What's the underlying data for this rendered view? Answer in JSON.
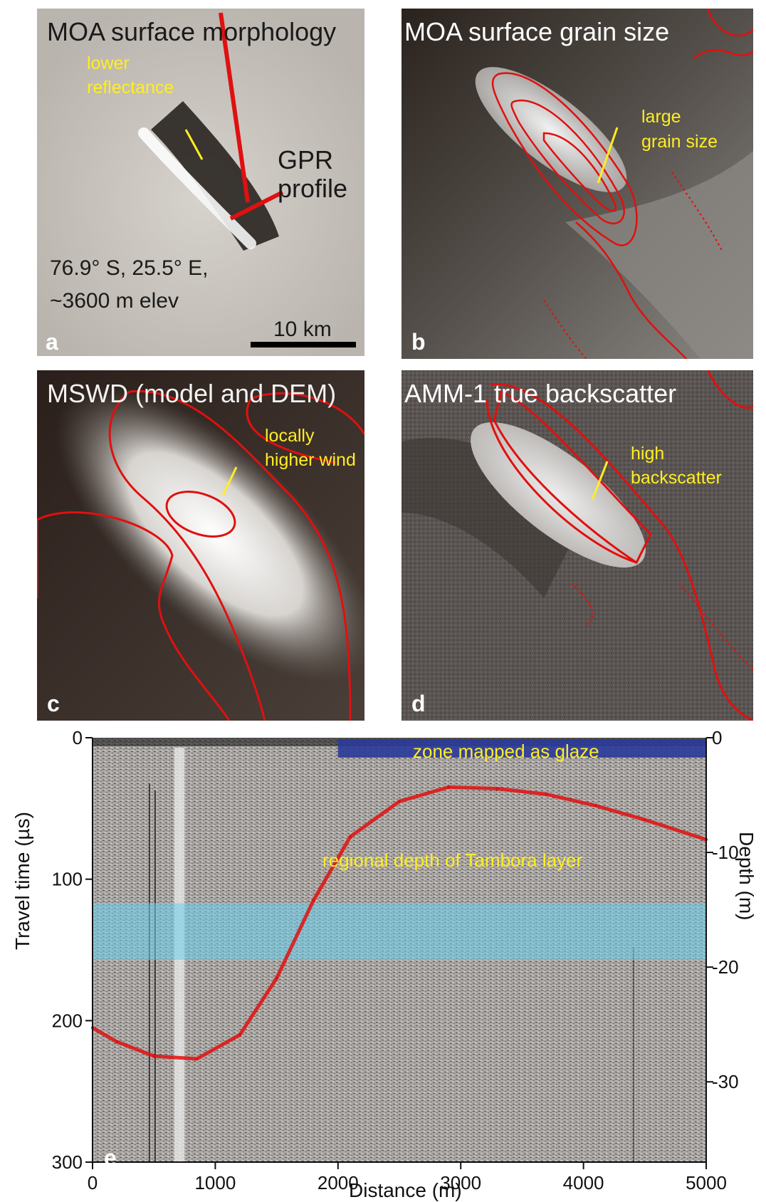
{
  "panels": {
    "a": {
      "letter": "a",
      "title": "MOA surface morphology",
      "annotation_lines": [
        "lower",
        "reflectance"
      ],
      "gpr_lines": [
        "GPR",
        "profile"
      ],
      "coord_lines": [
        "76.9° S, 25.5° E,",
        "~3600 m elev"
      ],
      "scale_label": "10 km"
    },
    "b": {
      "letter": "b",
      "title": "MOA surface grain size",
      "annotation_lines": [
        "large",
        "grain size"
      ]
    },
    "c": {
      "letter": "c",
      "title": "MSWD (model and DEM)",
      "annotation_lines": [
        "locally",
        "higher wind"
      ]
    },
    "d": {
      "letter": "d",
      "title": "AMM-1 true backscatter",
      "annotation_lines": [
        "high",
        "backscatter"
      ]
    },
    "e": {
      "letter": "e",
      "glaze_label": "zone mapped as glaze",
      "tambora_label": "regional depth of Tambora layer"
    }
  },
  "colors": {
    "contour": "#e01010",
    "annotation": "#ffee22",
    "glaze_band": "#2a3a9a",
    "tambora_band": "#6ad0ee"
  },
  "chart_data": {
    "type": "line",
    "xlabel": "Distance (m)",
    "ylabel": "Travel time (µs)",
    "y2label": "Depth (m)",
    "xlim": [
      0,
      5000
    ],
    "ylim": [
      0,
      300
    ],
    "y2lim": [
      0,
      37
    ],
    "x_ticks": [
      "0",
      "1000",
      "2000",
      "3000",
      "4000",
      "5000"
    ],
    "y_ticks": [
      "0",
      "100",
      "200",
      "300"
    ],
    "y2_ticks": [
      "0",
      "-10",
      "-20",
      "-30"
    ],
    "series": [
      {
        "x": [
          0,
          200,
          500,
          850,
          1200,
          1500,
          1800,
          2100,
          2500,
          2900,
          3300,
          3700,
          4100,
          4500,
          5000
        ],
        "y": [
          205,
          215,
          225,
          227,
          210,
          170,
          115,
          70,
          45,
          35,
          36,
          40,
          48,
          58,
          72
        ]
      }
    ],
    "glaze_zone": {
      "x_start": 2000,
      "x_end": 5000
    },
    "tambora_band": {
      "y_start": 117,
      "y_end": 157
    }
  }
}
